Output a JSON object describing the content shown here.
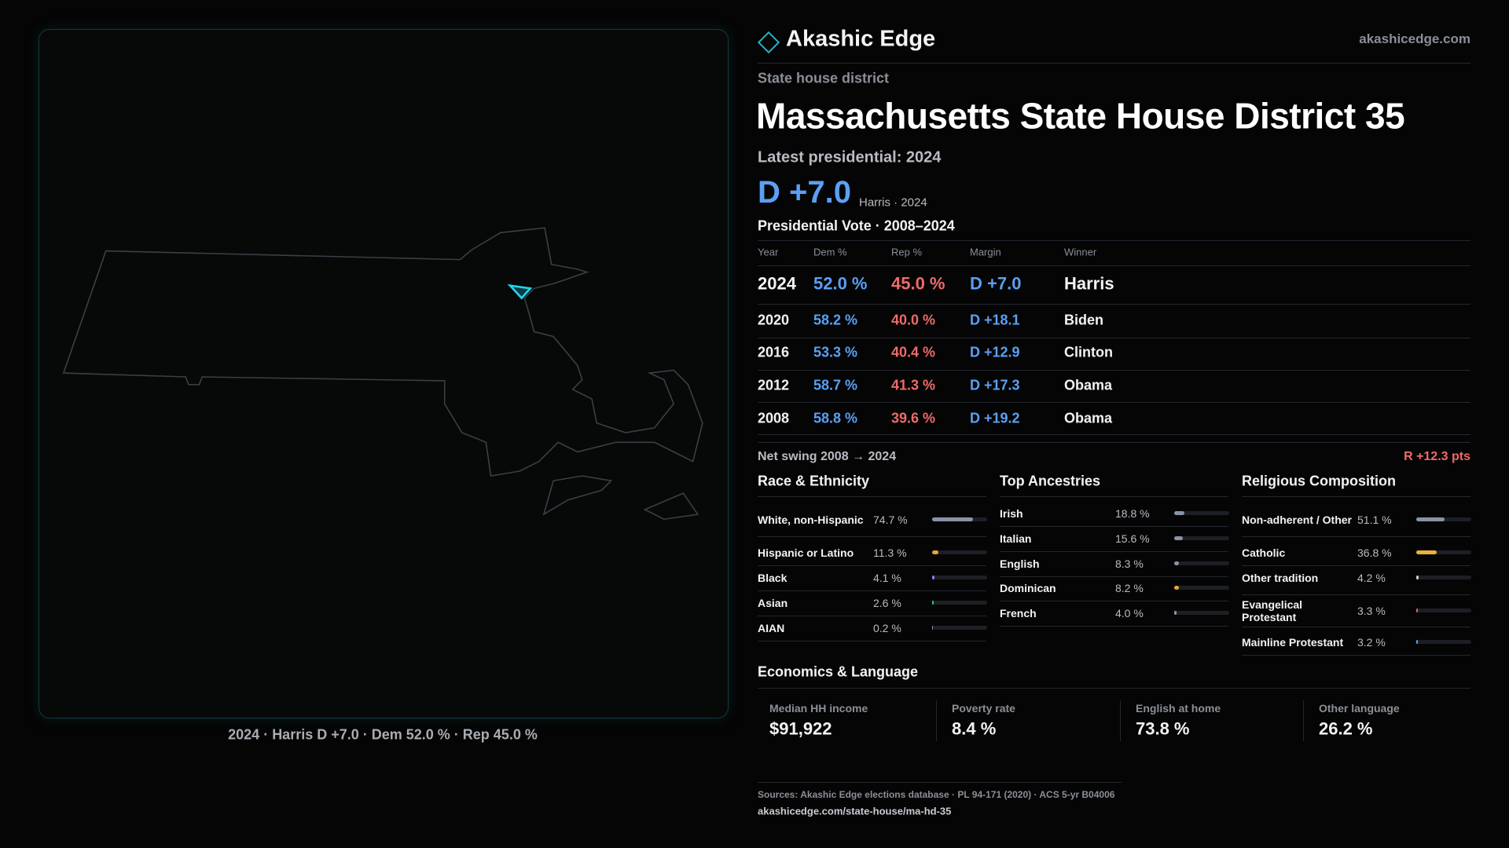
{
  "brand": {
    "name": "Akashic Edge",
    "site": "akashicedge.com"
  },
  "district": {
    "kind": "State house district",
    "title": "Massachusetts State House District 35"
  },
  "latest": {
    "heading": "Latest presidential: 2024",
    "margin": "D +7.0",
    "note": "Harris · 2024"
  },
  "map_caption": "2024 · Harris D +7.0 · Dem 52.0 % · Rep 45.0 %",
  "presidential": {
    "title": "Presidential Vote · 2008–2024",
    "columns": [
      "Year",
      "Dem %",
      "Rep %",
      "Margin",
      "Winner"
    ],
    "rows": [
      [
        "2024",
        "52.0 %",
        "45.0 %",
        "D +7.0",
        "Harris"
      ],
      [
        "2020",
        "58.2 %",
        "40.0 %",
        "D +18.1",
        "Biden"
      ],
      [
        "2016",
        "53.3 %",
        "40.4 %",
        "D +12.9",
        "Clinton"
      ],
      [
        "2012",
        "58.7 %",
        "41.3 %",
        "D +17.3",
        "Obama"
      ],
      [
        "2008",
        "58.8 %",
        "39.6 %",
        "D +19.2",
        "Obama"
      ]
    ]
  },
  "swing": {
    "label": "Net swing 2008 → 2024",
    "value": "R +12.3 pts"
  },
  "race": {
    "title": "Race & Ethnicity",
    "items": [
      {
        "name": "White, non-Hispanic",
        "value": 74.7,
        "label": "74.7 %",
        "color": "#8a93a6"
      },
      {
        "name": "Hispanic or Latino",
        "value": 11.3,
        "label": "11.3 %",
        "color": "#e8a33d"
      },
      {
        "name": "Black",
        "value": 4.1,
        "label": "4.1 %",
        "color": "#8b7cf6"
      },
      {
        "name": "Asian",
        "value": 2.6,
        "label": "2.6 %",
        "color": "#34c38f"
      },
      {
        "name": "AIAN",
        "value": 0.2,
        "label": "0.2 %",
        "color": "#8a93a6"
      }
    ]
  },
  "ancestry": {
    "title": "Top Ancestries",
    "items": [
      {
        "name": "Irish",
        "value": 18.8,
        "label": "18.8 %",
        "color": "#8a93a6"
      },
      {
        "name": "Italian",
        "value": 15.6,
        "label": "15.6 %",
        "color": "#8a93a6"
      },
      {
        "name": "English",
        "value": 8.3,
        "label": "8.3 %",
        "color": "#8a93a6"
      },
      {
        "name": "Dominican",
        "value": 8.2,
        "label": "8.2 %",
        "color": "#e8a33d"
      },
      {
        "name": "French",
        "value": 4.0,
        "label": "4.0 %",
        "color": "#8a93a6"
      }
    ]
  },
  "religion": {
    "title": "Religious Composition",
    "items": [
      {
        "name": "Non-adherent / Other",
        "value": 51.1,
        "label": "51.1 %",
        "color": "#8a93a6"
      },
      {
        "name": "Catholic",
        "value": 36.8,
        "label": "36.8 %",
        "color": "#e8b339"
      },
      {
        "name": "Other tradition",
        "value": 4.2,
        "label": "4.2 %",
        "color": "#c9ccd3"
      },
      {
        "name": "Evangelical Protestant",
        "value": 3.3,
        "label": "3.3 %",
        "color": "#e06666"
      },
      {
        "name": "Mainline Protestant",
        "value": 3.2,
        "label": "3.2 %",
        "color": "#5aa0f5"
      }
    ]
  },
  "economics": {
    "title": "Economics & Language",
    "items": [
      {
        "label": "Median HH income",
        "value": "$91,922"
      },
      {
        "label": "Poverty rate",
        "value": "8.4 %"
      },
      {
        "label": "English at home",
        "value": "73.8 %"
      },
      {
        "label": "Other language",
        "value": "26.2 %"
      }
    ]
  },
  "footer": {
    "sources": "Sources: Akashic Edge elections database · PL 94-171 (2020) · ACS 5-yr B04006",
    "url": "akashicedge.com/state-house/ma-hd-35"
  }
}
